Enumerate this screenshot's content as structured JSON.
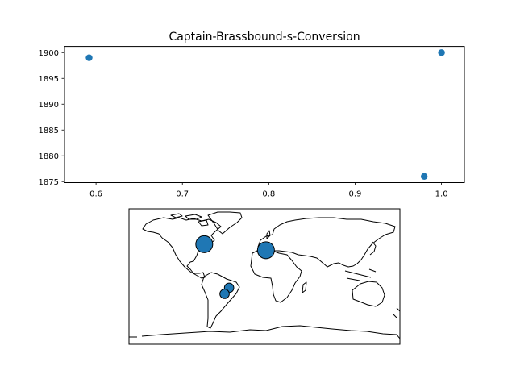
{
  "chart_data": [
    {
      "type": "scatter",
      "title": "Captain-Brassbound-s-Conversion",
      "xlabel": "",
      "ylabel": "",
      "xlim": [
        0.5635,
        1.0265
      ],
      "ylim": [
        1874.8,
        1901.2
      ],
      "xticks": [
        0.6,
        0.7,
        0.8,
        0.9,
        1.0
      ],
      "xticklabels": [
        "0.6",
        "0.7",
        "0.8",
        "0.9",
        "1.0"
      ],
      "yticks": [
        1875,
        1880,
        1885,
        1890,
        1895,
        1900
      ],
      "yticklabels": [
        "1875",
        "1880",
        "1885",
        "1890",
        "1895",
        "1900"
      ],
      "grid": false,
      "color": "#1f77b4",
      "points": [
        {
          "x": 0.592,
          "y": 1899
        },
        {
          "x": 1.0,
          "y": 1900
        },
        {
          "x": 0.98,
          "y": 1876
        }
      ]
    },
    {
      "type": "scatter",
      "subtype": "geographic-bubble-map",
      "title": "",
      "color": "#1f77b4",
      "projection": "plate-carree",
      "points": [
        {
          "lon": -80,
          "lat": 43,
          "relative_size": 1.0
        },
        {
          "lon": 2,
          "lat": 35,
          "relative_size": 1.0
        },
        {
          "lon": -47,
          "lat": -15,
          "relative_size": 0.45
        },
        {
          "lon": -53,
          "lat": -23,
          "relative_size": 0.45
        }
      ]
    }
  ]
}
